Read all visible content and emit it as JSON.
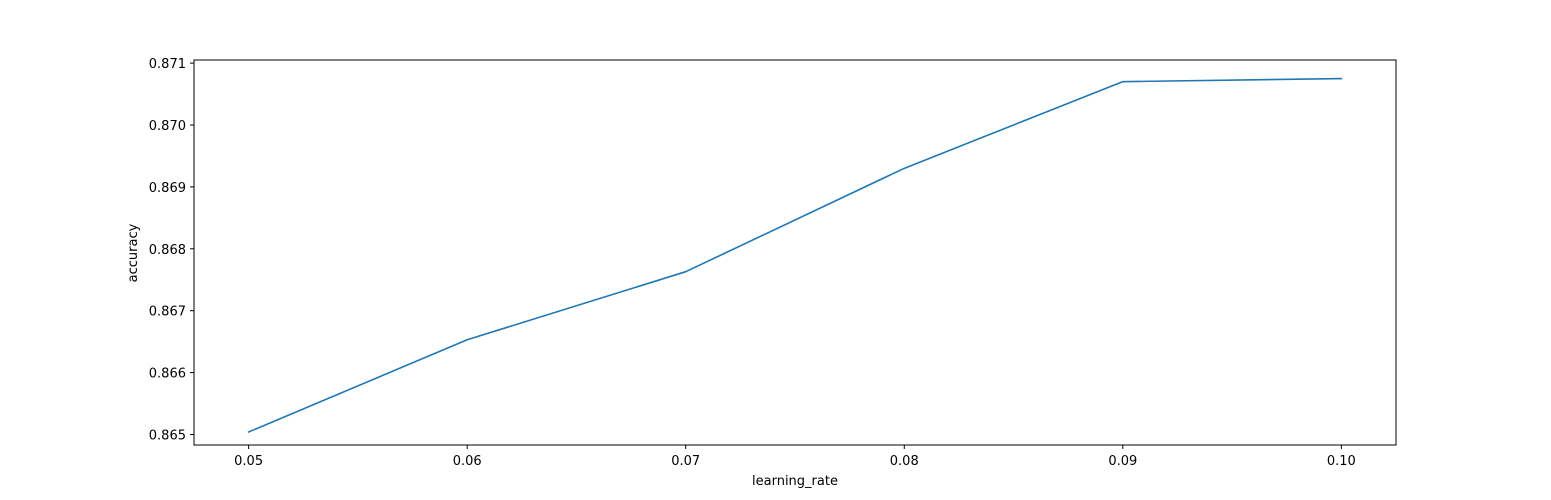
{
  "chart_data": {
    "type": "line",
    "title": "",
    "xlabel": "learning_rate",
    "ylabel": "accuracy",
    "x": [
      0.05,
      0.06,
      0.07,
      0.08,
      0.09,
      0.1
    ],
    "xticks": [
      "0.05",
      "0.06",
      "0.07",
      "0.08",
      "0.09",
      "0.10"
    ],
    "xlim": [
      0.0475,
      0.1025
    ],
    "ylim": [
      0.86483,
      0.87105
    ],
    "yticks": [
      "0.865",
      "0.866",
      "0.867",
      "0.868",
      "0.869",
      "0.870",
      "0.871"
    ],
    "grid": false,
    "legend": "none",
    "series": [
      {
        "color": "#1f77b4",
        "values": [
          0.86504,
          0.86653,
          0.86763,
          0.8693,
          0.8707,
          0.87075
        ]
      }
    ]
  }
}
